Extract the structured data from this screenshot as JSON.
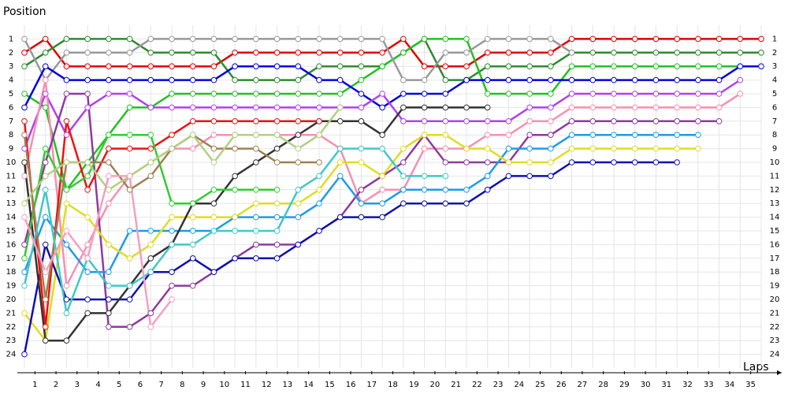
{
  "chart_data": {
    "type": "line",
    "y_label": "Position",
    "x_label": "Laps",
    "x": [
      0,
      1,
      2,
      3,
      4,
      5,
      6,
      7,
      8,
      9,
      10,
      11,
      12,
      13,
      14,
      15,
      16,
      17,
      18,
      19,
      20,
      21,
      22,
      23,
      24,
      25,
      26,
      27,
      28,
      29,
      30,
      31,
      32,
      33,
      34,
      35
    ],
    "xlim": [
      0,
      35
    ],
    "xticks": [
      {
        "value": 0.5,
        "label": "1"
      },
      {
        "value": 1.5,
        "label": "2"
      },
      {
        "value": 2.5,
        "label": "3"
      },
      {
        "value": 3.5,
        "label": "4"
      },
      {
        "value": 4.5,
        "label": "5"
      },
      {
        "value": 5.5,
        "label": "6"
      },
      {
        "value": 6.5,
        "label": "7"
      },
      {
        "value": 7.5,
        "label": "8"
      },
      {
        "value": 8.5,
        "label": "9"
      },
      {
        "value": 9.5,
        "label": "10"
      },
      {
        "value": 10.5,
        "label": "11"
      },
      {
        "value": 11.5,
        "label": "12"
      },
      {
        "value": 12.5,
        "label": "13"
      },
      {
        "value": 13.5,
        "label": "14"
      },
      {
        "value": 14.5,
        "label": "15"
      },
      {
        "value": 15.5,
        "label": "16"
      },
      {
        "value": 16.5,
        "label": "17"
      },
      {
        "value": 17.5,
        "label": "18"
      },
      {
        "value": 18.5,
        "label": "19"
      },
      {
        "value": 19.5,
        "label": "20"
      },
      {
        "value": 20.5,
        "label": "21"
      },
      {
        "value": 21.5,
        "label": "22"
      },
      {
        "value": 22.5,
        "label": "23"
      },
      {
        "value": 23.5,
        "label": "24"
      },
      {
        "value": 24.5,
        "label": "25"
      },
      {
        "value": 25.5,
        "label": "26"
      },
      {
        "value": 26.5,
        "label": "27"
      },
      {
        "value": 27.5,
        "label": "28"
      },
      {
        "value": 28.5,
        "label": "29"
      },
      {
        "value": 29.5,
        "label": "30"
      },
      {
        "value": 30.5,
        "label": "31"
      },
      {
        "value": 31.5,
        "label": "32"
      },
      {
        "value": 32.5,
        "label": "33"
      },
      {
        "value": 33.5,
        "label": "34"
      },
      {
        "value": 34.5,
        "label": "35"
      }
    ],
    "ylim": [
      25,
      0
    ],
    "yticks": [
      1,
      2,
      3,
      4,
      5,
      6,
      7,
      8,
      9,
      10,
      11,
      12,
      13,
      14,
      15,
      16,
      17,
      18,
      19,
      20,
      21,
      22,
      23,
      24
    ],
    "grid": true,
    "series": [
      {
        "color": "#e00000",
        "values": [
          2,
          1,
          3,
          3,
          3,
          3,
          3,
          3,
          3,
          3,
          2,
          2,
          2,
          2,
          2,
          2,
          2,
          2,
          1,
          3,
          3,
          3,
          2,
          2,
          2,
          2,
          1,
          1,
          1,
          1,
          1,
          1,
          1,
          1,
          1,
          1
        ]
      },
      {
        "color": "#2e8b2e",
        "values": [
          3,
          2,
          1,
          1,
          1,
          1,
          2,
          2,
          2,
          2,
          4,
          4,
          4,
          4,
          3,
          3,
          3,
          3,
          2,
          1,
          4,
          4,
          3,
          3,
          3,
          3,
          2,
          2,
          2,
          2,
          2,
          2,
          2,
          2,
          2,
          2
        ]
      },
      {
        "color": "#22c022",
        "values": [
          5,
          6,
          12,
          10,
          8,
          6,
          6,
          5,
          5,
          5,
          5,
          5,
          5,
          5,
          5,
          5,
          4,
          3,
          2,
          1,
          1,
          1,
          5,
          5,
          5,
          5,
          3,
          3,
          3,
          3,
          3,
          3,
          3,
          3,
          3,
          null
        ]
      },
      {
        "color": "#999999",
        "values": [
          1,
          4,
          2,
          2,
          2,
          2,
          1,
          1,
          1,
          1,
          1,
          1,
          1,
          1,
          1,
          1,
          1,
          1,
          4,
          4,
          2,
          2,
          1,
          1,
          1,
          1,
          2,
          null,
          null,
          null,
          null,
          null,
          null,
          null,
          null,
          null
        ]
      },
      {
        "color": "#0000e0",
        "values": [
          6,
          3,
          4,
          4,
          4,
          4,
          4,
          4,
          4,
          4,
          3,
          3,
          3,
          3,
          4,
          4,
          5,
          6,
          5,
          5,
          5,
          4,
          4,
          4,
          4,
          4,
          4,
          4,
          4,
          4,
          4,
          4,
          4,
          4,
          3,
          3
        ]
      },
      {
        "color": "#b040f0",
        "values": [
          9,
          5,
          8,
          6,
          5,
          5,
          6,
          6,
          6,
          6,
          6,
          6,
          6,
          6,
          6,
          6,
          6,
          5,
          7,
          7,
          7,
          7,
          7,
          7,
          6,
          6,
          5,
          5,
          5,
          5,
          5,
          5,
          5,
          5,
          4,
          null
        ]
      },
      {
        "color": "#f590b0",
        "values": [
          11,
          4,
          19,
          16,
          13,
          11,
          10,
          9,
          9,
          8,
          8,
          8,
          8,
          8,
          8,
          9,
          13,
          12,
          12,
          9,
          9,
          9,
          8,
          8,
          7,
          7,
          6,
          6,
          6,
          6,
          6,
          6,
          6,
          6,
          5,
          null
        ]
      },
      {
        "color": "#8e3a9e",
        "values": [
          16,
          10,
          5,
          5,
          22,
          22,
          21,
          19,
          19,
          18,
          17,
          16,
          16,
          16,
          15,
          14,
          12,
          11,
          10,
          8,
          10,
          10,
          10,
          10,
          8,
          8,
          7,
          7,
          7,
          7,
          7,
          7,
          7,
          7,
          null,
          null
        ]
      },
      {
        "color": "#1e9be8",
        "values": [
          18,
          14,
          16,
          18,
          18,
          15,
          15,
          15,
          15,
          15,
          14,
          14,
          14,
          14,
          13,
          11,
          13,
          13,
          12,
          12,
          12,
          12,
          11,
          9,
          9,
          9,
          8,
          8,
          8,
          8,
          8,
          8,
          8,
          null,
          null,
          null
        ]
      },
      {
        "color": "#e0dc20",
        "values": [
          21,
          23,
          13,
          14,
          16,
          17,
          16,
          14,
          14,
          14,
          14,
          13,
          13,
          13,
          12,
          10,
          10,
          11,
          9,
          8,
          8,
          9,
          9,
          10,
          10,
          10,
          9,
          9,
          9,
          9,
          9,
          9,
          9,
          null,
          null,
          null
        ]
      },
      {
        "color": "#1010b0",
        "values": [
          24,
          16,
          20,
          20,
          20,
          20,
          18,
          18,
          17,
          18,
          17,
          17,
          17,
          16,
          15,
          14,
          14,
          14,
          13,
          13,
          13,
          13,
          12,
          11,
          11,
          11,
          10,
          10,
          10,
          10,
          10,
          10,
          null,
          null,
          null,
          null
        ]
      },
      {
        "color": "#333333",
        "values": [
          10,
          23,
          23,
          21,
          21,
          19,
          17,
          16,
          13,
          13,
          11,
          10,
          9,
          8,
          7,
          7,
          7,
          8,
          6,
          6,
          6,
          6,
          6,
          null,
          null,
          null,
          null,
          null,
          null,
          null,
          null,
          null,
          null,
          null,
          null,
          null
        ]
      },
      {
        "color": "#ee1111",
        "values": [
          7,
          22,
          7,
          12,
          9,
          9,
          9,
          8,
          7,
          7,
          7,
          7,
          7,
          7,
          7,
          null,
          null,
          null,
          null,
          null,
          null,
          null,
          null,
          null,
          null,
          null,
          null,
          null,
          null,
          null,
          null,
          null,
          null,
          null,
          null,
          null
        ]
      },
      {
        "color": "#33cc33",
        "values": [
          17,
          9,
          12,
          11,
          8,
          8,
          8,
          13,
          13,
          12,
          12,
          12,
          12,
          null,
          null,
          null,
          null,
          null,
          null,
          null,
          null,
          null,
          null,
          null,
          null,
          null,
          null,
          null,
          null,
          null,
          null,
          null,
          null,
          null,
          null,
          null
        ]
      },
      {
        "color": "#a08050",
        "values": [
          8,
          20,
          10,
          10,
          10,
          12,
          11,
          9,
          8,
          9,
          9,
          9,
          10,
          10,
          10,
          null,
          null,
          null,
          null,
          null,
          null,
          null,
          null,
          null,
          null,
          null,
          null,
          null,
          null,
          null,
          null,
          null,
          null,
          null,
          null,
          null
        ]
      },
      {
        "color": "#b0d080",
        "values": [
          13,
          11,
          10,
          10,
          12,
          11,
          10,
          9,
          8,
          10,
          8,
          8,
          8,
          9,
          8,
          6,
          null,
          null,
          null,
          null,
          null,
          null,
          null,
          null,
          null,
          null,
          null,
          null,
          null,
          null,
          null,
          null,
          null,
          null,
          null,
          null
        ]
      },
      {
        "color": "#40c8c8",
        "values": [
          19,
          12,
          21,
          17,
          19,
          19,
          18,
          16,
          16,
          15,
          15,
          15,
          15,
          12,
          11,
          9,
          9,
          9,
          11,
          11,
          11,
          null,
          null,
          null,
          null,
          null,
          null,
          null,
          null,
          null,
          null,
          null,
          null,
          null,
          null,
          null
        ]
      },
      {
        "color": "#f4a0c0",
        "values": [
          14,
          18,
          15,
          17,
          11,
          11,
          22,
          20,
          null,
          null,
          null,
          null,
          null,
          null,
          null,
          null,
          null,
          null,
          null,
          null,
          null,
          null,
          null,
          null,
          null,
          null,
          null,
          null,
          null,
          null,
          null,
          null,
          null,
          null,
          null,
          null
        ]
      }
    ]
  }
}
